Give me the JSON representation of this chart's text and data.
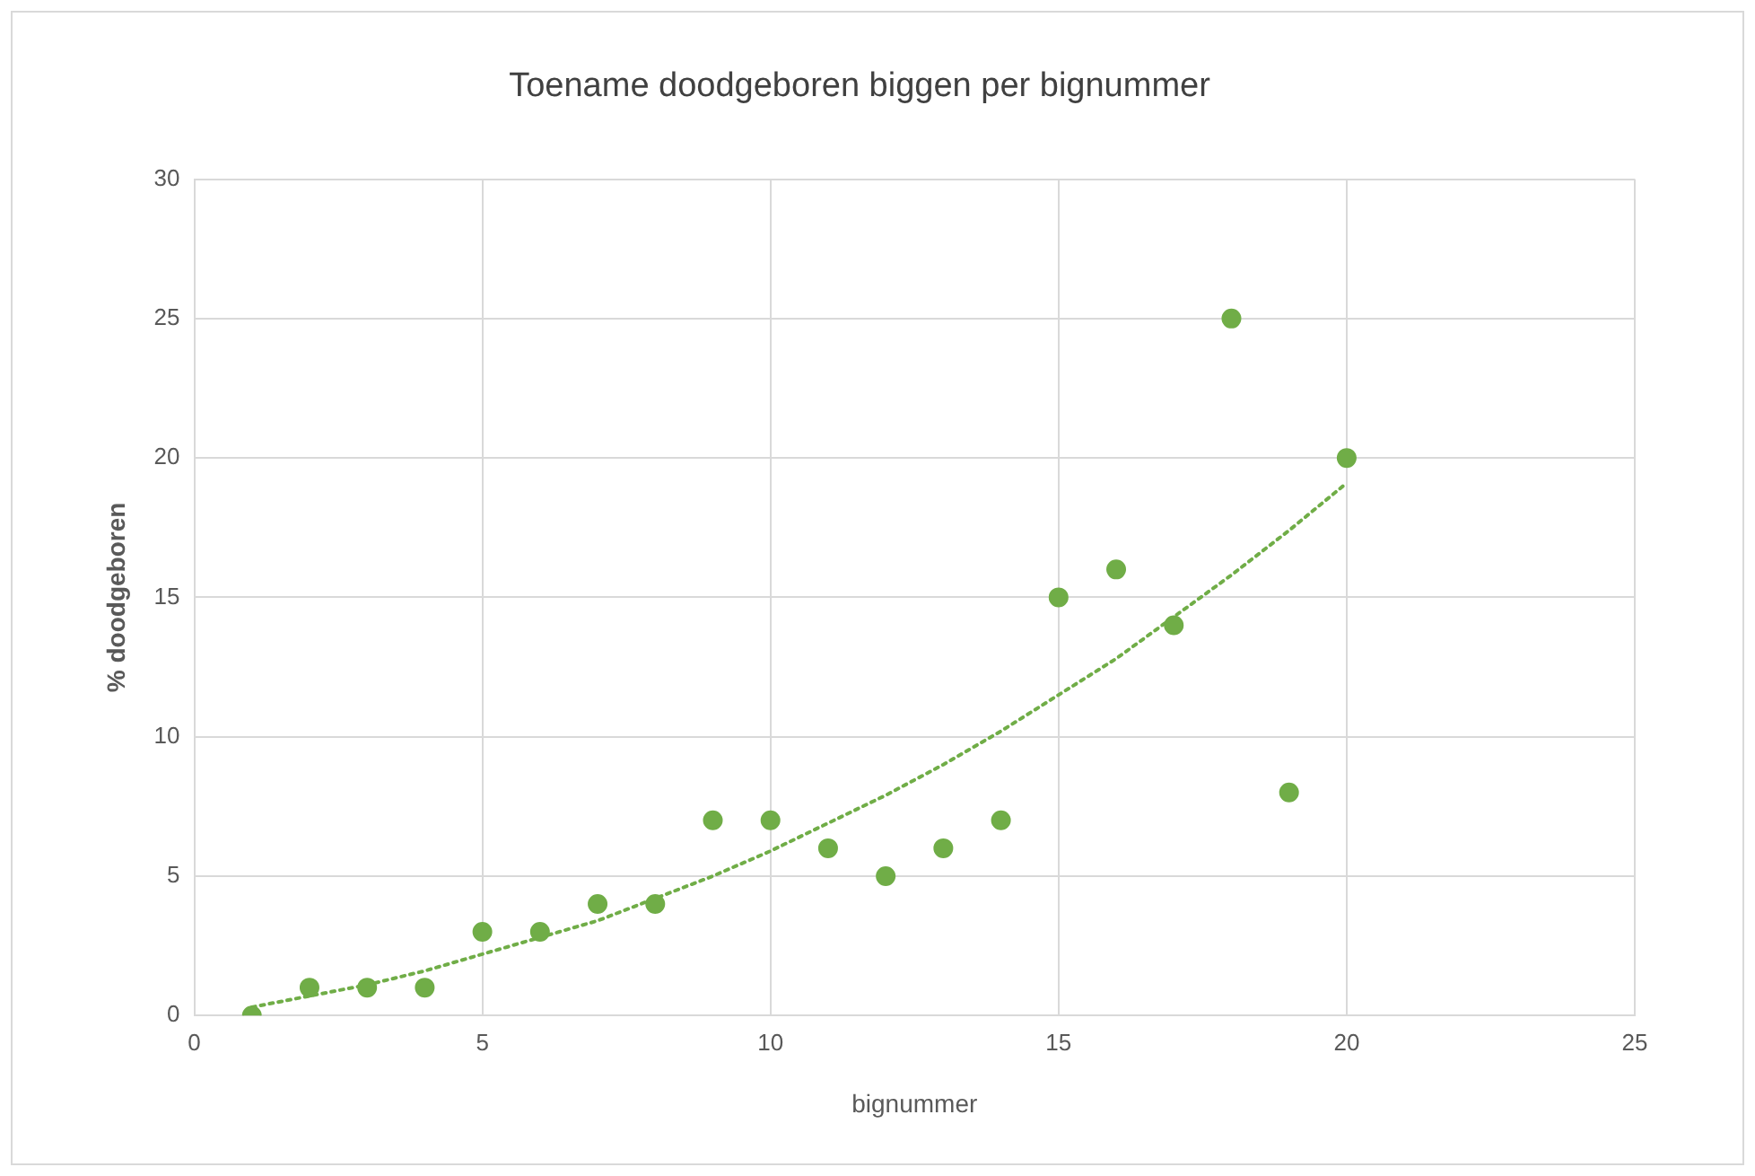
{
  "chart_data": {
    "type": "scatter",
    "title": "Toename doodgeboren biggen per bignummer",
    "xlabel": "bignummer",
    "ylabel": "% doodgeboren",
    "x": [
      1,
      2,
      3,
      4,
      5,
      6,
      7,
      8,
      9,
      10,
      11,
      12,
      13,
      14,
      15,
      16,
      17,
      18,
      19,
      20
    ],
    "series": [
      {
        "color": "#70ad47",
        "marker": "circle",
        "values": [
          0,
          1,
          1,
          1,
          3,
          3,
          4,
          4,
          7,
          7,
          6,
          5,
          6,
          7,
          15,
          16,
          14,
          25,
          8,
          20
        ]
      },
      {
        "type": "line",
        "color": "#70ad47",
        "line_style": "dotted",
        "marker": "none",
        "values": [
          0.3,
          0.7,
          1.1,
          1.6,
          2.2,
          2.8,
          3.4,
          4.2,
          5.0,
          5.9,
          6.9,
          7.9,
          9.0,
          10.2,
          11.5,
          12.8,
          14.3,
          15.8,
          17.4,
          19.1
        ]
      }
    ],
    "xlim": [
      0,
      25
    ],
    "xticks": [
      0,
      5,
      10,
      15,
      20,
      25
    ],
    "ylim": [
      0,
      30
    ],
    "yticks": [
      0,
      5,
      10,
      15,
      20,
      25,
      30
    ],
    "grid": true,
    "legend": false
  }
}
